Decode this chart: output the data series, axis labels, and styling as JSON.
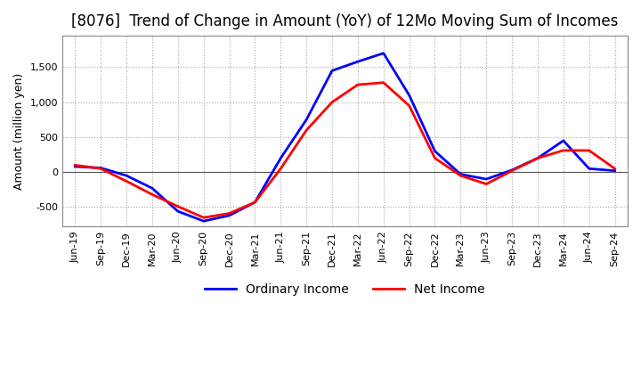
{
  "title": "[8076]  Trend of Change in Amount (YoY) of 12Mo Moving Sum of Incomes",
  "ylabel": "Amount (million yen)",
  "ylim": [
    -780,
    1950
  ],
  "yticks": [
    -500,
    0,
    500,
    1000,
    1500
  ],
  "x_labels": [
    "Jun-19",
    "Sep-19",
    "Dec-19",
    "Mar-20",
    "Jun-20",
    "Sep-20",
    "Dec-20",
    "Mar-21",
    "Jun-21",
    "Sep-21",
    "Dec-21",
    "Mar-22",
    "Jun-22",
    "Sep-22",
    "Dec-22",
    "Mar-23",
    "Jun-23",
    "Sep-23",
    "Dec-23",
    "Mar-24",
    "Jun-24",
    "Sep-24"
  ],
  "ordinary_income": [
    80,
    60,
    -50,
    -230,
    -560,
    -700,
    -620,
    -430,
    200,
    750,
    1450,
    1580,
    1700,
    1100,
    300,
    -30,
    -100,
    30,
    200,
    450,
    50,
    20
  ],
  "net_income": [
    100,
    50,
    -130,
    -320,
    -490,
    -650,
    -590,
    -430,
    50,
    600,
    1000,
    1250,
    1280,
    950,
    200,
    -50,
    -170,
    20,
    200,
    310,
    310,
    50
  ],
  "ordinary_color": "#0000ff",
  "net_color": "#ff0000",
  "line_width": 2.0,
  "title_fontsize": 12,
  "legend_fontsize": 10,
  "tick_fontsize": 8,
  "grid_color": "#aaaaaa",
  "background_color": "#ffffff",
  "spine_color": "#888888"
}
